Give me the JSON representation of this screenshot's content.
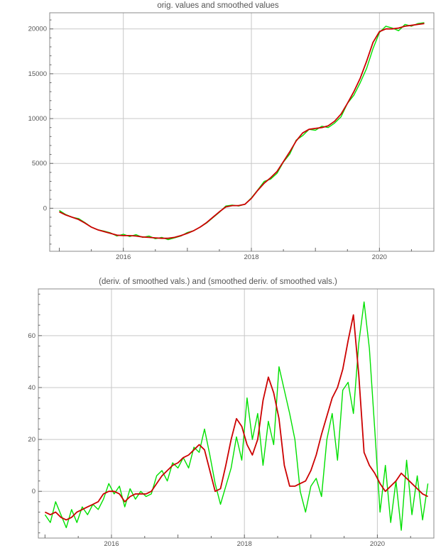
{
  "chart_data": [
    {
      "type": "line",
      "title": "orig. values and smoothed values",
      "xlim": [
        2014.85,
        2020.85
      ],
      "ylim": [
        -4800,
        21800
      ],
      "xticks": [
        2016,
        2018,
        2020
      ],
      "yticks": [
        0,
        5000,
        10000,
        15000,
        20000
      ],
      "grid": true,
      "series": [
        {
          "color": "#00e000",
          "x": [
            2015.0,
            2015.1,
            2015.2,
            2015.3,
            2015.4,
            2015.5,
            2015.6,
            2015.7,
            2015.8,
            2015.9,
            2016.0,
            2016.1,
            2016.2,
            2016.3,
            2016.4,
            2016.5,
            2016.6,
            2016.7,
            2016.8,
            2016.9,
            2017.0,
            2017.1,
            2017.2,
            2017.3,
            2017.4,
            2017.5,
            2017.6,
            2017.7,
            2017.8,
            2017.9,
            2018.0,
            2018.1,
            2018.2,
            2018.3,
            2018.4,
            2018.5,
            2018.6,
            2018.7,
            2018.8,
            2018.9,
            2019.0,
            2019.1,
            2019.2,
            2019.3,
            2019.4,
            2019.5,
            2019.6,
            2019.7,
            2019.8,
            2019.9,
            2020.0,
            2020.1,
            2020.2,
            2020.3,
            2020.4,
            2020.5,
            2020.6,
            2020.7
          ],
          "y": [
            -250,
            -700,
            -1000,
            -1150,
            -1600,
            -2100,
            -2400,
            -2550,
            -2750,
            -3100,
            -2900,
            -3150,
            -2950,
            -3250,
            -3100,
            -3400,
            -3250,
            -3500,
            -3300,
            -3100,
            -2700,
            -2500,
            -2100,
            -1650,
            -1050,
            -450,
            250,
            350,
            250,
            450,
            1150,
            2050,
            3000,
            3250,
            3900,
            5150,
            6050,
            7600,
            8100,
            8800,
            8700,
            9150,
            9000,
            9500,
            10200,
            11700,
            12600,
            14000,
            15600,
            17800,
            19600,
            20300,
            20100,
            19800,
            20500,
            20300,
            20600,
            20700
          ]
        },
        {
          "color": "#cc0000",
          "x": [
            2015.0,
            2015.1,
            2015.2,
            2015.3,
            2015.4,
            2015.5,
            2015.6,
            2015.7,
            2015.8,
            2015.9,
            2016.0,
            2016.1,
            2016.2,
            2016.3,
            2016.4,
            2016.5,
            2016.6,
            2016.7,
            2016.8,
            2016.9,
            2017.0,
            2017.1,
            2017.2,
            2017.3,
            2017.4,
            2017.5,
            2017.6,
            2017.7,
            2017.8,
            2017.9,
            2018.0,
            2018.1,
            2018.2,
            2018.3,
            2018.4,
            2018.5,
            2018.6,
            2018.7,
            2018.8,
            2018.9,
            2019.0,
            2019.1,
            2019.2,
            2019.3,
            2019.4,
            2019.5,
            2019.6,
            2019.7,
            2019.8,
            2019.9,
            2020.0,
            2020.1,
            2020.2,
            2020.3,
            2020.4,
            2020.5,
            2020.6,
            2020.7
          ],
          "y": [
            -400,
            -750,
            -1000,
            -1250,
            -1650,
            -2100,
            -2400,
            -2600,
            -2800,
            -3000,
            -3050,
            -3050,
            -3100,
            -3200,
            -3250,
            -3300,
            -3350,
            -3350,
            -3250,
            -3050,
            -2800,
            -2500,
            -2100,
            -1600,
            -1000,
            -400,
            150,
            300,
            300,
            450,
            1100,
            2000,
            2800,
            3400,
            4100,
            5200,
            6300,
            7500,
            8400,
            8800,
            8900,
            9000,
            9200,
            9700,
            10500,
            11700,
            13000,
            14500,
            16400,
            18500,
            19700,
            20000,
            20000,
            20100,
            20300,
            20400,
            20500,
            20600
          ]
        }
      ]
    },
    {
      "type": "line",
      "title": "(deriv. of smoothed vals.) and (smoothed deriv. of smoothed vals.)",
      "xlim": [
        2014.9,
        2020.85
      ],
      "ylim": [
        -18,
        78
      ],
      "xticks": [
        2016,
        2018,
        2020
      ],
      "yticks": [
        0,
        20,
        40,
        60
      ],
      "grid": true,
      "series": [
        {
          "color": "#00e000",
          "x": [
            2015.0,
            2015.08,
            2015.16,
            2015.24,
            2015.32,
            2015.4,
            2015.48,
            2015.56,
            2015.64,
            2015.72,
            2015.8,
            2015.88,
            2015.96,
            2016.04,
            2016.12,
            2016.2,
            2016.28,
            2016.36,
            2016.44,
            2016.52,
            2016.6,
            2016.68,
            2016.76,
            2016.84,
            2016.92,
            2017.0,
            2017.08,
            2017.16,
            2017.24,
            2017.32,
            2017.4,
            2017.48,
            2017.56,
            2017.64,
            2017.72,
            2017.8,
            2017.88,
            2017.96,
            2018.04,
            2018.12,
            2018.2,
            2018.28,
            2018.36,
            2018.44,
            2018.52,
            2018.6,
            2018.68,
            2018.76,
            2018.84,
            2018.92,
            2019.0,
            2019.08,
            2019.16,
            2019.24,
            2019.32,
            2019.4,
            2019.48,
            2019.56,
            2019.64,
            2019.72,
            2019.8,
            2019.88,
            2019.96,
            2020.04,
            2020.12,
            2020.2,
            2020.28,
            2020.36,
            2020.44,
            2020.52,
            2020.6,
            2020.68,
            2020.76
          ],
          "y": [
            -9,
            -12,
            -4,
            -9,
            -14,
            -7,
            -12,
            -6,
            -9,
            -5,
            -7,
            -3,
            3,
            -1,
            2,
            -6,
            1,
            -3,
            0,
            -2,
            -1,
            6,
            8,
            4,
            11,
            9,
            13,
            9,
            17,
            15,
            24,
            14,
            3,
            -5,
            2,
            9,
            21,
            12,
            36,
            20,
            30,
            10,
            27,
            18,
            48,
            39,
            30,
            20,
            0,
            -8,
            2,
            5,
            -2,
            20,
            30,
            12,
            39,
            42,
            30,
            57,
            73,
            55,
            24,
            -8,
            10,
            -12,
            4,
            -15,
            12,
            -9,
            6,
            -11,
            3
          ]
        },
        {
          "color": "#cc0000",
          "x": [
            2015.0,
            2015.08,
            2015.16,
            2015.24,
            2015.32,
            2015.4,
            2015.48,
            2015.56,
            2015.64,
            2015.72,
            2015.8,
            2015.88,
            2015.96,
            2016.04,
            2016.12,
            2016.2,
            2016.28,
            2016.36,
            2016.44,
            2016.52,
            2016.6,
            2016.68,
            2016.76,
            2016.84,
            2016.92,
            2017.0,
            2017.08,
            2017.16,
            2017.24,
            2017.32,
            2017.4,
            2017.48,
            2017.56,
            2017.64,
            2017.72,
            2017.8,
            2017.88,
            2017.96,
            2018.04,
            2018.12,
            2018.2,
            2018.28,
            2018.36,
            2018.44,
            2018.52,
            2018.6,
            2018.68,
            2018.76,
            2018.84,
            2018.92,
            2019.0,
            2019.08,
            2019.16,
            2019.24,
            2019.32,
            2019.4,
            2019.48,
            2019.56,
            2019.64,
            2019.72,
            2019.8,
            2019.88,
            2019.96,
            2020.04,
            2020.12,
            2020.2,
            2020.28,
            2020.36,
            2020.44,
            2020.52,
            2020.6,
            2020.68,
            2020.76
          ],
          "y": [
            -8,
            -9,
            -8,
            -10,
            -11,
            -10,
            -8,
            -7,
            -6,
            -5,
            -4,
            -1,
            0,
            0,
            -1,
            -4,
            -2,
            -1,
            -1,
            -1,
            0,
            3,
            6,
            8,
            10,
            11,
            13,
            14,
            16,
            18,
            16,
            8,
            0,
            1,
            10,
            20,
            28,
            25,
            18,
            14,
            20,
            35,
            44,
            38,
            28,
            10,
            2,
            2,
            3,
            4,
            8,
            14,
            22,
            29,
            36,
            40,
            47,
            58,
            68,
            45,
            15,
            10,
            7,
            3,
            0,
            2,
            4,
            7,
            5,
            3,
            1,
            -1,
            -2
          ]
        }
      ]
    }
  ]
}
